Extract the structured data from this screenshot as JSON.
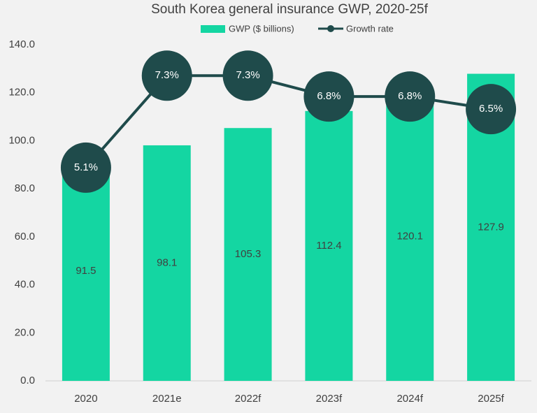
{
  "chart_data": {
    "type": "combo",
    "title": "South Korea general insurance GWP, 2020-25f",
    "categories": [
      "2020",
      "2021e",
      "2022f",
      "2023f",
      "2024f",
      "2025f"
    ],
    "series": [
      {
        "name": "GWP ($ billions)",
        "type": "bar",
        "color": "#14d6a2",
        "values": [
          91.5,
          98.1,
          105.3,
          112.4,
          120.1,
          127.9
        ]
      },
      {
        "name": "Growth rate",
        "type": "line",
        "axis": "y2",
        "color": "#1f4b4b",
        "values": [
          5.1,
          7.3,
          7.3,
          6.8,
          6.8,
          6.5
        ],
        "value_labels": [
          "5.1%",
          "7.3%",
          "7.3%",
          "6.8%",
          "6.8%",
          "6.5%"
        ]
      }
    ],
    "ylim": [
      0,
      140
    ],
    "yticks": [
      {
        "value": 0,
        "label": "0.0"
      },
      {
        "value": 20,
        "label": "20.0"
      },
      {
        "value": 40,
        "label": "40.0"
      },
      {
        "value": 60,
        "label": "60.0"
      },
      {
        "value": 80,
        "label": "80.0"
      },
      {
        "value": 100,
        "label": "100.0"
      },
      {
        "value": 120,
        "label": "120.0"
      },
      {
        "value": 140,
        "label": "140.0"
      }
    ],
    "y2lim": [
      0,
      8.04
    ],
    "legend": "top"
  }
}
